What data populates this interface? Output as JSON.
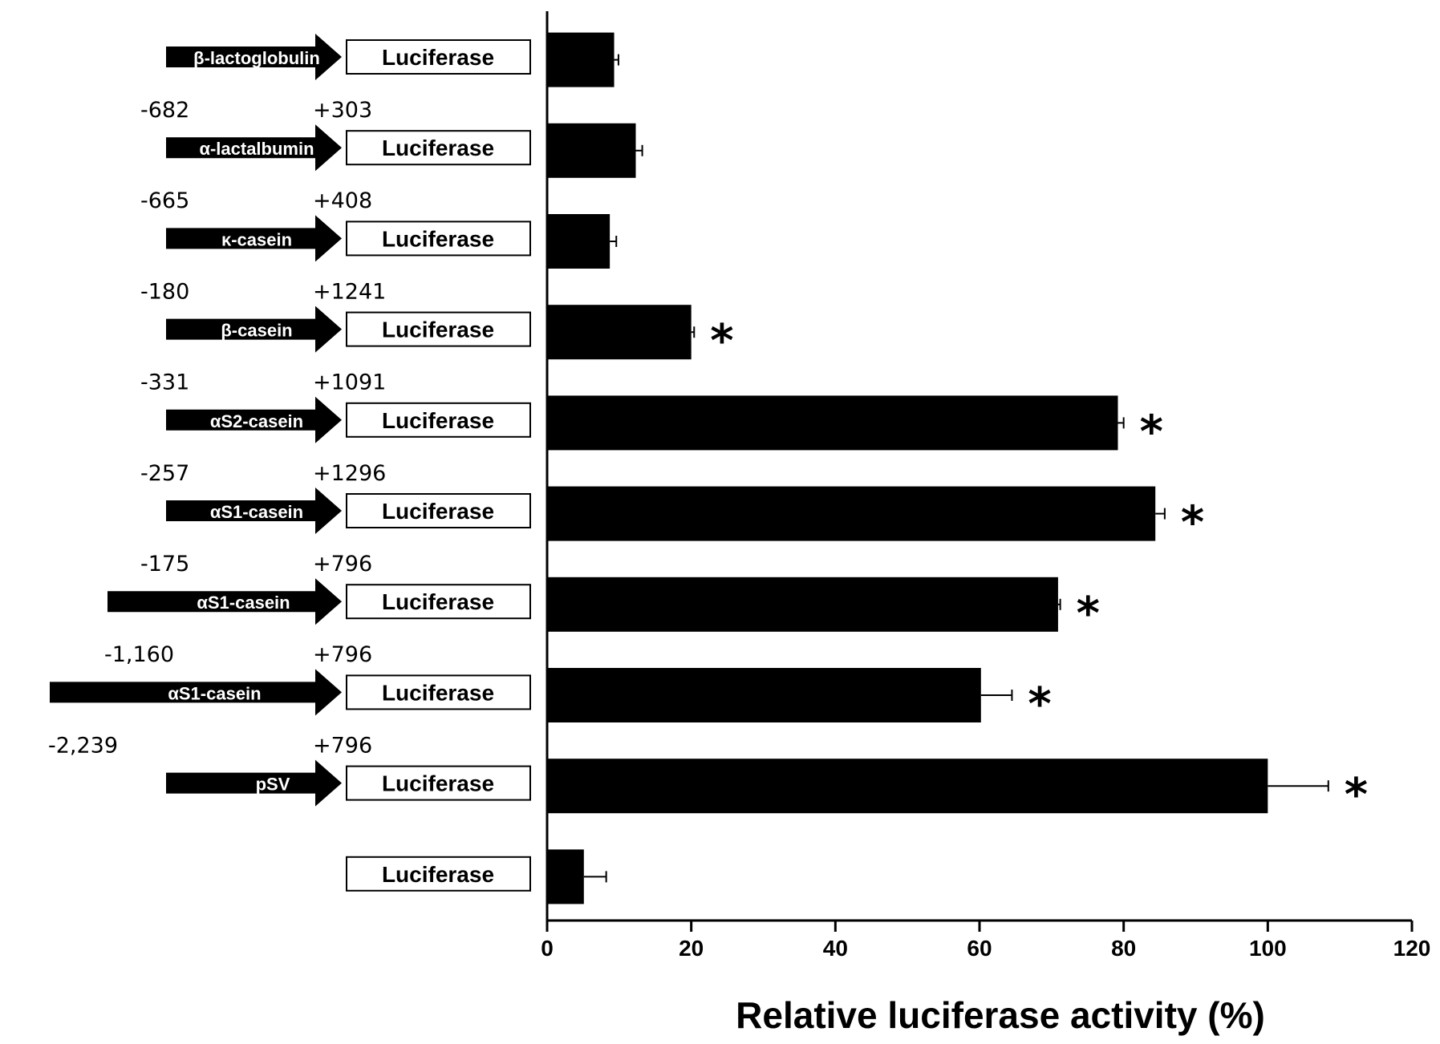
{
  "chart_data": {
    "type": "bar",
    "orientation": "horizontal",
    "xlabel": "Relative luciferase activity (%)",
    "xlim": [
      0,
      120
    ],
    "xticks": [
      0,
      20,
      40,
      60,
      80,
      100,
      120
    ],
    "grid": false,
    "reporter_label": "Luciferase",
    "rows": [
      {
        "promoter": "β-lactoglobulin",
        "start": "-682",
        "end": "+303",
        "value": 9.3,
        "error": 0.6,
        "significant": false
      },
      {
        "promoter": "α-lactalbumin",
        "start": "-665",
        "end": "+408",
        "value": 12.3,
        "error": 0.9,
        "significant": false
      },
      {
        "promoter": "κ-casein",
        "start": "-180",
        "end": "+1241",
        "value": 8.7,
        "error": 0.9,
        "significant": false
      },
      {
        "promoter": "β-casein",
        "start": "-331",
        "end": "+1091",
        "value": 20.0,
        "error": 0.4,
        "significant": true
      },
      {
        "promoter": "αS2-casein",
        "start": "-257",
        "end": "+1296",
        "value": 79.2,
        "error": 0.8,
        "significant": true
      },
      {
        "promoter": "αS1-casein",
        "start": "-175",
        "end": "+796",
        "value": 84.4,
        "error": 1.3,
        "significant": true
      },
      {
        "promoter": "αS1-casein",
        "start": "-1,160",
        "end": "+796",
        "value": 70.9,
        "error": 0.3,
        "significant": true
      },
      {
        "promoter": "αS1-casein",
        "start": "-2,239",
        "end": "+796",
        "value": 60.2,
        "error": 4.3,
        "significant": true
      },
      {
        "promoter": "pSV",
        "start": "",
        "end": "",
        "value": 100.0,
        "error": 8.4,
        "significant": true
      },
      {
        "promoter": "",
        "start": "",
        "end": "",
        "value": 5.1,
        "error": 3.1,
        "significant": false
      }
    ],
    "significance_marker": "*"
  }
}
